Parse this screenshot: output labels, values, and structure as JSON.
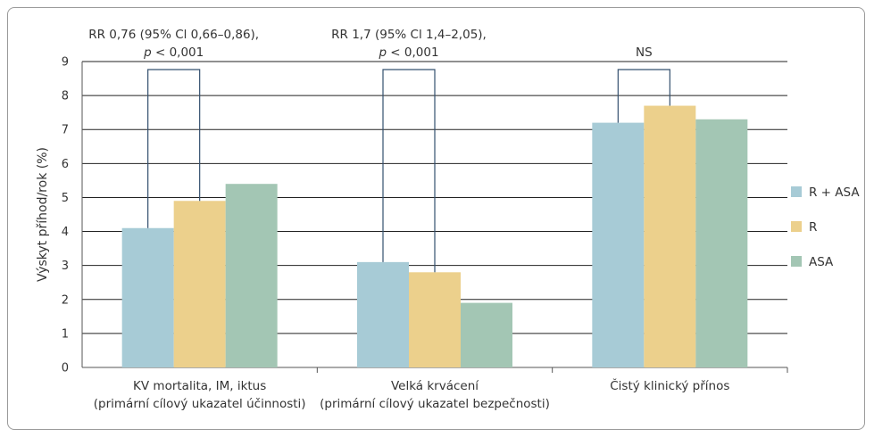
{
  "chart_data": {
    "type": "bar",
    "ylabel": "Výskyt příhod/rok (%)",
    "ylim": [
      0,
      9
    ],
    "yticks": [
      "0",
      "1",
      "2",
      "3",
      "4",
      "5",
      "6",
      "7",
      "8",
      "9"
    ],
    "grid": true,
    "legend_position": "right",
    "categories": [
      {
        "line1": "KV mortalita, IM, iktus",
        "line2": "(primární cílový ukazatel účinnosti)"
      },
      {
        "line1": "Velká krvácení",
        "line2": "(primární cílový ukazatel bezpečnosti)"
      },
      {
        "line1": "Čistý klinický přínos",
        "line2": ""
      }
    ],
    "series": [
      {
        "name": "R  + ASA",
        "color": "#a7cbd6",
        "values": [
          4.1,
          3.1,
          7.2
        ]
      },
      {
        "name": "R",
        "color": "#ecd08c",
        "values": [
          4.9,
          2.8,
          7.7
        ]
      },
      {
        "name": "ASA",
        "color": "#a3c6b4",
        "values": [
          5.4,
          1.9,
          7.3
        ]
      }
    ],
    "annotations": [
      {
        "line1": "RR 0,76 (95% Cl 0,66–0,86),",
        "line2_italic": "p",
        "line2_rest": " < 0,001",
        "from_series": 0,
        "to_series": 1
      },
      {
        "line1": "RR 1,7 (95% Cl 1,4–2,05),",
        "line2_italic": "p",
        "line2_rest": " < 0,001",
        "from_series": 0,
        "to_series": 1
      },
      {
        "line1": "NS",
        "line2_italic": "",
        "line2_rest": "",
        "from_series": 0,
        "to_series": 1
      }
    ],
    "colors": {
      "bracket": "#34506f",
      "grid": "#222222",
      "axis": "#555555"
    }
  }
}
